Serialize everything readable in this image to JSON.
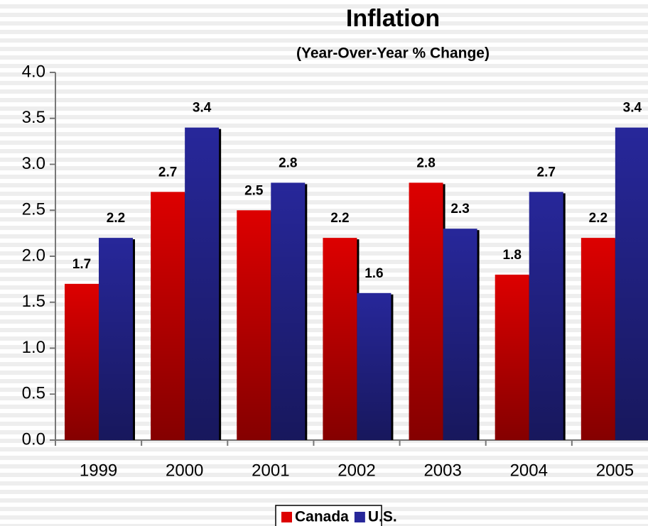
{
  "chart_data": {
    "type": "bar",
    "title": "Inflation",
    "subtitle": "(Year-Over-Year % Change)",
    "categories": [
      "1999",
      "2000",
      "2001",
      "2002",
      "2003",
      "2004",
      "2005"
    ],
    "series": [
      {
        "name": "Canada",
        "color": "#dd0000",
        "values": [
          1.7,
          2.7,
          2.5,
          2.2,
          2.8,
          1.8,
          2.2
        ]
      },
      {
        "name": "U.S.",
        "color": "#27279a",
        "values": [
          2.2,
          3.4,
          2.8,
          1.6,
          2.3,
          2.7,
          3.4
        ]
      }
    ],
    "ylim": [
      0,
      4
    ],
    "yticks": [
      {
        "value": 0,
        "label": "0.0"
      },
      {
        "value": 0.5,
        "label": "0.5"
      },
      {
        "value": 1,
        "label": "1.0"
      },
      {
        "value": 1.5,
        "label": "1.5"
      },
      {
        "value": 2,
        "label": "2.0"
      },
      {
        "value": 2.5,
        "label": "2.5"
      },
      {
        "value": 3,
        "label": "3.0"
      },
      {
        "value": 3.5,
        "label": "3.5"
      },
      {
        "value": 4,
        "label": "4.0"
      }
    ],
    "grid": false,
    "legend": "bottom"
  }
}
